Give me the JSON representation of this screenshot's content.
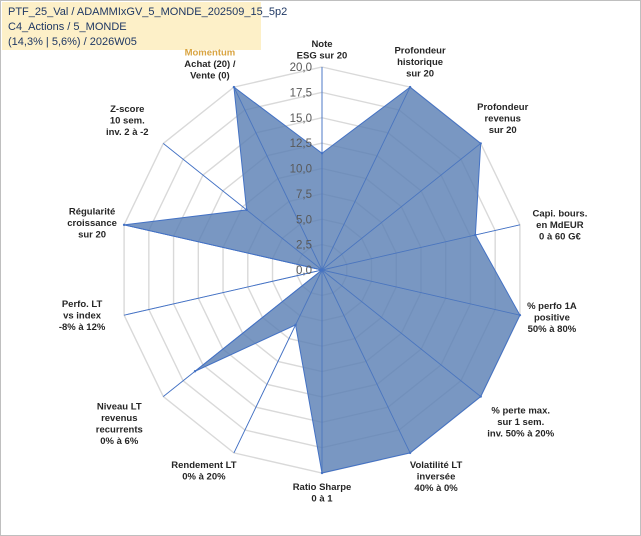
{
  "info": {
    "line1": "PTF_25_Val / ADAMMIxGV_5_MONDE_202509_15_5p2",
    "line2": "C4_Actions / 5_MONDE",
    "line3": "(14,3% | 5,6%) / 2026W05"
  },
  "chart_data": {
    "type": "radar",
    "categories": [
      [
        "Note",
        "ESG sur 20"
      ],
      [
        "Profondeur",
        "historique",
        "sur 20"
      ],
      [
        "Profondeur",
        "revenus",
        "sur 20"
      ],
      [
        "Capi. bours.",
        "en MdEUR",
        "0 à 60 G€"
      ],
      [
        "% perfo 1A",
        "positive",
        "50% à 80%"
      ],
      [
        "% perte max.",
        "sur 1 sem.",
        "inv. 50% à 20%"
      ],
      [
        "Volatilité LT",
        "inversée",
        "40% à 0%"
      ],
      [
        "Ratio Sharpe",
        "0 à 1"
      ],
      [
        "Rendement LT",
        "0% à 20%"
      ],
      [
        "Niveau LT",
        "revenus",
        "recurrents",
        "0% à 6%"
      ],
      [
        "Perfo. LT",
        "vs index",
        "-8% à 12%"
      ],
      [
        "Régularité",
        "croissance",
        "sur 20"
      ],
      [
        "Z-score",
        "10 sem.",
        "inv. 2 à -2"
      ],
      [
        "Momentum",
        "Achat (20) /",
        "Vente (0)"
      ]
    ],
    "values": [
      11.5,
      20,
      20,
      15.5,
      20,
      20,
      20,
      20,
      6,
      16,
      0,
      20,
      9.5,
      20
    ],
    "rlim": [
      0,
      20
    ],
    "ticks": [
      "0,0",
      "2,5",
      "5,0",
      "7,5",
      "10,0",
      "12,5",
      "15,0",
      "17,5",
      "20,0"
    ],
    "grid": true,
    "fill_color": "#5b80b4",
    "fill_opacity": 0.82,
    "line_color": "#4472c4",
    "grid_color": "#d9d9d9",
    "highlight_color": "#d9a441"
  }
}
